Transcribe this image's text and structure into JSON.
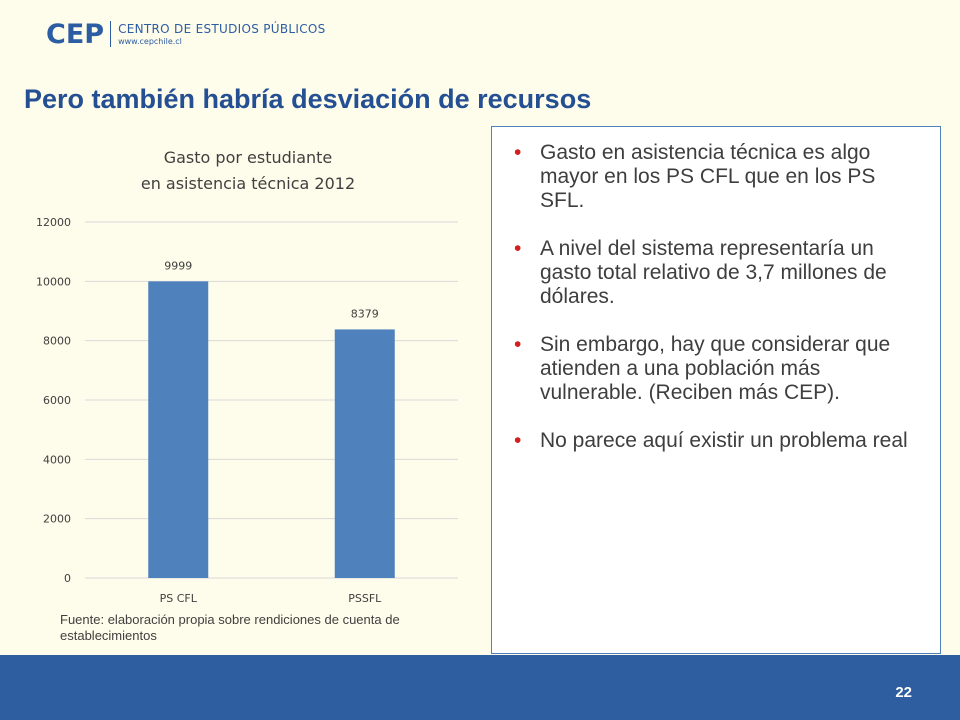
{
  "header": {
    "logo_mark": "CEP",
    "org_name": "CENTRO DE ESTUDIOS PÚBLICOS",
    "org_url": "www.cepchile.cl"
  },
  "slide": {
    "title": "Pero también habría desviación de recursos",
    "page_number": "22"
  },
  "chart_data": {
    "type": "bar",
    "title_lines": [
      "Gasto por estudiante",
      "en asistencia técnica 2012"
    ],
    "categories": [
      "PS CFL",
      "PSSFL"
    ],
    "values": [
      9999,
      8379
    ],
    "data_labels": [
      "9999",
      "8379"
    ],
    "yticks": [
      "0",
      "2000",
      "4000",
      "6000",
      "8000",
      "10000",
      "12000"
    ],
    "ylim": [
      0,
      12000
    ],
    "grid": true,
    "legend": "none",
    "bar_color": "#4F81BD"
  },
  "source_note": "Fuente: elaboración propia sobre rendiciones de cuenta de establecimientos",
  "bullets": [
    "Gasto en asistencia técnica es algo mayor en los PS CFL que en los PS SFL.",
    "A nivel del sistema representaría un gasto total relativo de 3,7 millones de dólares.",
    "Sin embargo, hay que considerar que atienden a una población más vulnerable. (Reciben más CEP).",
    "No parece aquí existir un problema real"
  ],
  "colors": {
    "background": "#FEFCEA",
    "brand_blue": "#2C5DA3",
    "title_blue": "#244F92",
    "bullet_red": "#D21F1F",
    "footer_blue": "#2E5DA0"
  }
}
